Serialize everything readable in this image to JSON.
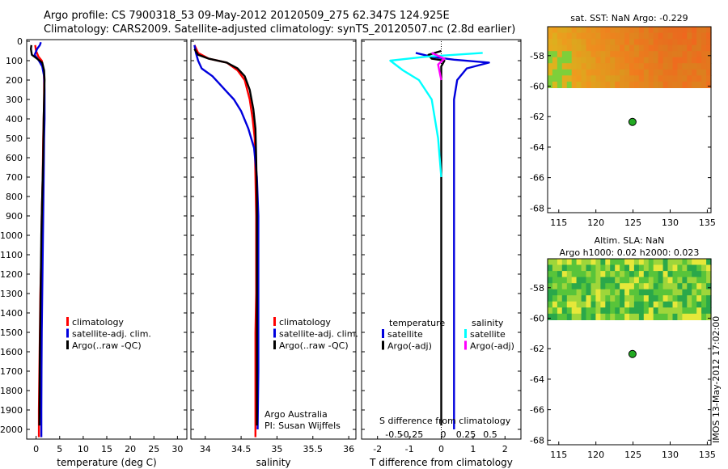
{
  "header": {
    "line1": "Argo profile: CS 7900318_53 09-May-2012 20120509_275 62.347S 124.925E",
    "line2": "Climatology: CARS2009. Satellite-adjusted climatology: synTS_20120507.nc (2.8d earlier)"
  },
  "colors": {
    "climatology": "#ff0000",
    "satellite": "#0000dd",
    "argo": "#000000",
    "satellite_salinity": "#00ffff",
    "argo_salinity_adj": "#ff00ff",
    "float_marker": "#22aa22"
  },
  "depth_axis": {
    "ylim": [
      0,
      2050
    ],
    "inverted": true,
    "ticks": [
      0,
      100,
      200,
      300,
      400,
      500,
      600,
      700,
      800,
      900,
      1000,
      1100,
      1200,
      1300,
      1400,
      1500,
      1600,
      1700,
      1800,
      1900,
      2000
    ]
  },
  "chart_data": [
    {
      "id": "temperature-profile",
      "type": "line",
      "xlabel": "temperature (deg C)",
      "xlim": [
        -2,
        32
      ],
      "xticks": [
        0,
        5,
        10,
        15,
        20,
        25,
        30
      ],
      "legend": [
        "climatology",
        "satellite-adj. clim.",
        "Argo(..raw -QC)"
      ],
      "series": [
        {
          "name": "climatology",
          "color": "#ff0000",
          "x": [
            -0.2,
            0,
            0.5,
            1.2,
            1.6,
            1.7,
            1.7,
            1.6,
            1.5,
            1.4,
            1.2,
            1.1,
            0.9,
            0.8,
            0.7,
            0.6,
            0.6
          ],
          "depth": [
            20,
            50,
            80,
            100,
            150,
            200,
            300,
            400,
            500,
            700,
            900,
            1100,
            1300,
            1500,
            1700,
            1900,
            2040
          ]
        },
        {
          "name": "satellite-adj. clim.",
          "color": "#0000dd",
          "x": [
            1.0,
            0.8,
            0.2,
            -0.3,
            0.6,
            1.3,
            1.7,
            1.8,
            1.8,
            1.8,
            1.7,
            1.6,
            1.5,
            1.4,
            1.3,
            1.2,
            1.15,
            1.1,
            1.1
          ],
          "depth": [
            5,
            20,
            40,
            70,
            100,
            130,
            180,
            250,
            300,
            400,
            500,
            700,
            900,
            1100,
            1300,
            1500,
            1700,
            1900,
            2040
          ]
        },
        {
          "name": "Argo(..raw -QC)",
          "color": "#000000",
          "x": [
            -1.0,
            -1.1,
            -0.9,
            0.2,
            1.3,
            1.7,
            1.8,
            1.7,
            1.6,
            1.5,
            1.3,
            1.1,
            1.0,
            0.9,
            0.8,
            0.7
          ],
          "depth": [
            20,
            40,
            70,
            90,
            110,
            150,
            200,
            300,
            400,
            600,
            800,
            1000,
            1200,
            1400,
            1600,
            1980
          ]
        }
      ]
    },
    {
      "id": "salinity-profile",
      "type": "line",
      "xlabel": "salinity",
      "xlim": [
        33.8,
        36.1
      ],
      "xticks": [
        34,
        34.5,
        35,
        35.5,
        36
      ],
      "xticklabels": [
        "34",
        "34.5",
        "35",
        "35.5",
        "36"
      ],
      "legend": [
        "climatology",
        "satellite-adj. clim.",
        "Argo(..raw -QC)"
      ],
      "series": [
        {
          "name": "climatology",
          "color": "#ff0000",
          "x": [
            33.85,
            33.9,
            34.05,
            34.3,
            34.45,
            34.55,
            34.62,
            34.66,
            34.69,
            34.7,
            34.71,
            34.71,
            34.71,
            34.7,
            34.7,
            34.7
          ],
          "depth": [
            20,
            60,
            90,
            110,
            150,
            200,
            300,
            400,
            500,
            700,
            900,
            1100,
            1300,
            1500,
            1700,
            2040
          ]
        },
        {
          "name": "satellite-adj. clim.",
          "color": "#0000dd",
          "x": [
            33.85,
            33.87,
            33.9,
            33.95,
            34.1,
            34.2,
            34.3,
            34.4,
            34.5,
            34.6,
            34.68,
            34.72,
            34.74,
            34.74,
            34.74,
            34.74,
            34.73
          ],
          "depth": [
            20,
            60,
            100,
            140,
            180,
            220,
            260,
            300,
            360,
            450,
            550,
            700,
            900,
            1100,
            1400,
            1700,
            2000
          ]
        },
        {
          "name": "Argo(..raw -QC)",
          "color": "#000000",
          "x": [
            33.85,
            33.9,
            34.05,
            34.3,
            34.45,
            34.55,
            34.62,
            34.67,
            34.7,
            34.71,
            34.72,
            34.72,
            34.72,
            34.72
          ],
          "depth": [
            40,
            70,
            90,
            110,
            140,
            180,
            250,
            350,
            450,
            600,
            800,
            1000,
            1400,
            1980
          ]
        }
      ],
      "annotation": [
        "Argo Australia",
        "PI: Susan Wijffels"
      ]
    },
    {
      "id": "difference-profile",
      "type": "line",
      "xlabel": "T difference from climatology",
      "xlabel_top": "S difference from climatology",
      "xlim": [
        -2.5,
        2.5
      ],
      "xticks": [
        -2,
        -1,
        0,
        1,
        2
      ],
      "top_ticks": [
        "-0.5",
        "-0.25",
        "0",
        "0.25",
        "0.5"
      ],
      "legend_title_temperature": "temperature",
      "legend_title_salinity": "salinity",
      "legend": [
        "satellite",
        "Argo(-adj)",
        "satellite",
        "Argo(-adj)"
      ],
      "series": [
        {
          "name": "satellite",
          "color": "#0000dd",
          "x": [
            -0.8,
            -0.3,
            0.4,
            1.5,
            0.8,
            0.5,
            0.4,
            0.4,
            0.4,
            0.4,
            0.4,
            0.4
          ],
          "depth": [
            60,
            80,
            95,
            110,
            140,
            200,
            300,
            500,
            800,
            1200,
            1600,
            2000
          ]
        },
        {
          "name": "Argo(-adj)",
          "color": "#000000",
          "x": [
            0,
            -0.4,
            -0.3,
            0.1,
            0,
            0,
            0,
            0
          ],
          "depth": [
            50,
            70,
            90,
            100,
            130,
            200,
            1000,
            1980
          ]
        },
        {
          "name": "satellite",
          "color": "#00ffff",
          "x": [
            1.3,
            -0.5,
            -1.6,
            -1.2,
            -0.7,
            -0.3,
            -0.1,
            0
          ],
          "depth": [
            60,
            80,
            100,
            150,
            200,
            300,
            500,
            700
          ]
        },
        {
          "name": "Argo(-adj)",
          "color": "#ff00ff",
          "x": [
            -0.3,
            0.1,
            -0.1,
            0
          ],
          "depth": [
            60,
            90,
            120,
            200
          ]
        }
      ]
    },
    {
      "id": "sst-map",
      "type": "heatmap",
      "title": "sat. SST: NaN Argo: -0.229",
      "xlim": [
        113.5,
        135.5
      ],
      "ylim": [
        -68.3,
        -56.1
      ],
      "xticks": [
        115,
        120,
        125,
        130,
        135
      ],
      "yticks": [
        -58,
        -60,
        -62,
        -64,
        -66,
        -68
      ],
      "data_top_lat": -56.1,
      "data_bottom_lat": -60.1,
      "marker": {
        "lon": 124.925,
        "lat": -62.347
      }
    },
    {
      "id": "sla-map",
      "type": "heatmap",
      "title": "Altim. SLA: NaN",
      "subtitle": "Argo h1000: 0.02 h2000: 0.023",
      "xlim": [
        113.5,
        135.5
      ],
      "ylim": [
        -68.3,
        -56.1
      ],
      "xticks": [
        115,
        120,
        125,
        130,
        135
      ],
      "yticks": [
        -58,
        -60,
        -62,
        -64,
        -66,
        -68
      ],
      "data_top_lat": -56.1,
      "data_bottom_lat": -60.1,
      "marker": {
        "lon": 124.925,
        "lat": -62.347
      }
    }
  ],
  "footer_stamp": "IMOS 13-May-2012 17:02:00"
}
